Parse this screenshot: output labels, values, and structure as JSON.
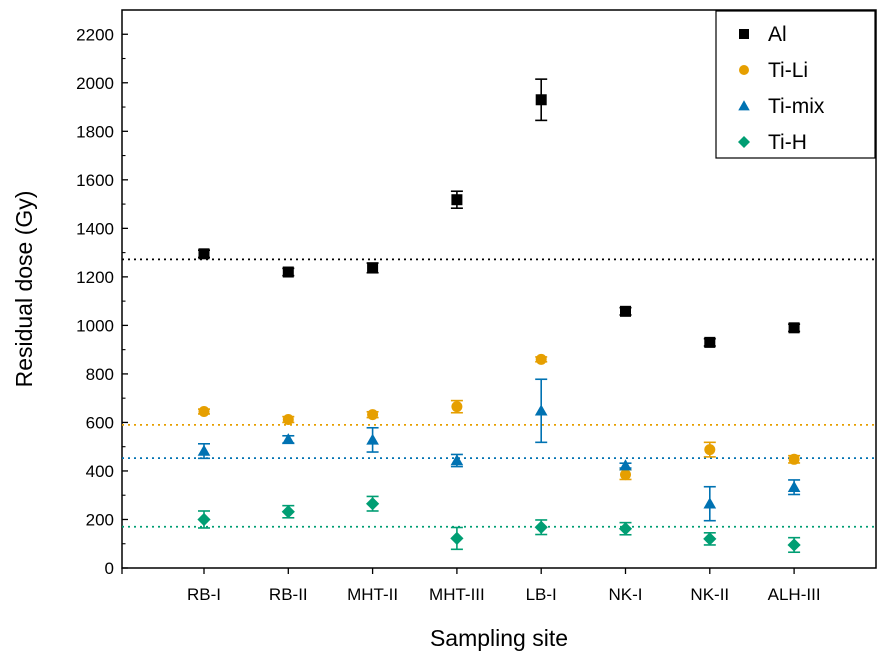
{
  "chart_data": {
    "type": "scatter",
    "title": "",
    "xlabel": "Sampling site",
    "ylabel": "Residual dose (Gy)",
    "categories": [
      "RB-I",
      "RB-II",
      "MHT-II",
      "MHT-III",
      "LB-I",
      "NK-I",
      "NK-II",
      "ALH-III"
    ],
    "ylim": [
      0,
      2300
    ],
    "yticks": [
      0,
      200,
      400,
      600,
      800,
      1000,
      1200,
      1400,
      1600,
      1800,
      2000,
      2200
    ],
    "grid": false,
    "legend_position": "top-right",
    "series": [
      {
        "name": "Al",
        "color": "#000000",
        "marker": "square",
        "values": [
          1295,
          1220,
          1237,
          1518,
          1930,
          1058,
          930,
          990
        ],
        "errors": [
          15,
          15,
          20,
          35,
          85,
          15,
          15,
          15
        ],
        "reference_line": 1272
      },
      {
        "name": "Ti-Li",
        "color": "#E69F00",
        "marker": "circle",
        "values": [
          645,
          612,
          632,
          665,
          860,
          385,
          488,
          448
        ],
        "errors": [
          10,
          12,
          12,
          25,
          10,
          20,
          30,
          15
        ],
        "reference_line": 590
      },
      {
        "name": "Ti-mix",
        "color": "#0072B2",
        "marker": "triangle",
        "values": [
          482,
          530,
          528,
          443,
          648,
          422,
          265,
          333
        ],
        "errors": [
          30,
          15,
          50,
          25,
          130,
          10,
          70,
          30
        ],
        "reference_line": 453
      },
      {
        "name": "Ti-H",
        "color": "#009E73",
        "marker": "diamond",
        "values": [
          200,
          232,
          265,
          122,
          168,
          162,
          120,
          95
        ],
        "errors": [
          35,
          25,
          30,
          45,
          30,
          25,
          25,
          30
        ],
        "reference_line": 170
      }
    ]
  }
}
